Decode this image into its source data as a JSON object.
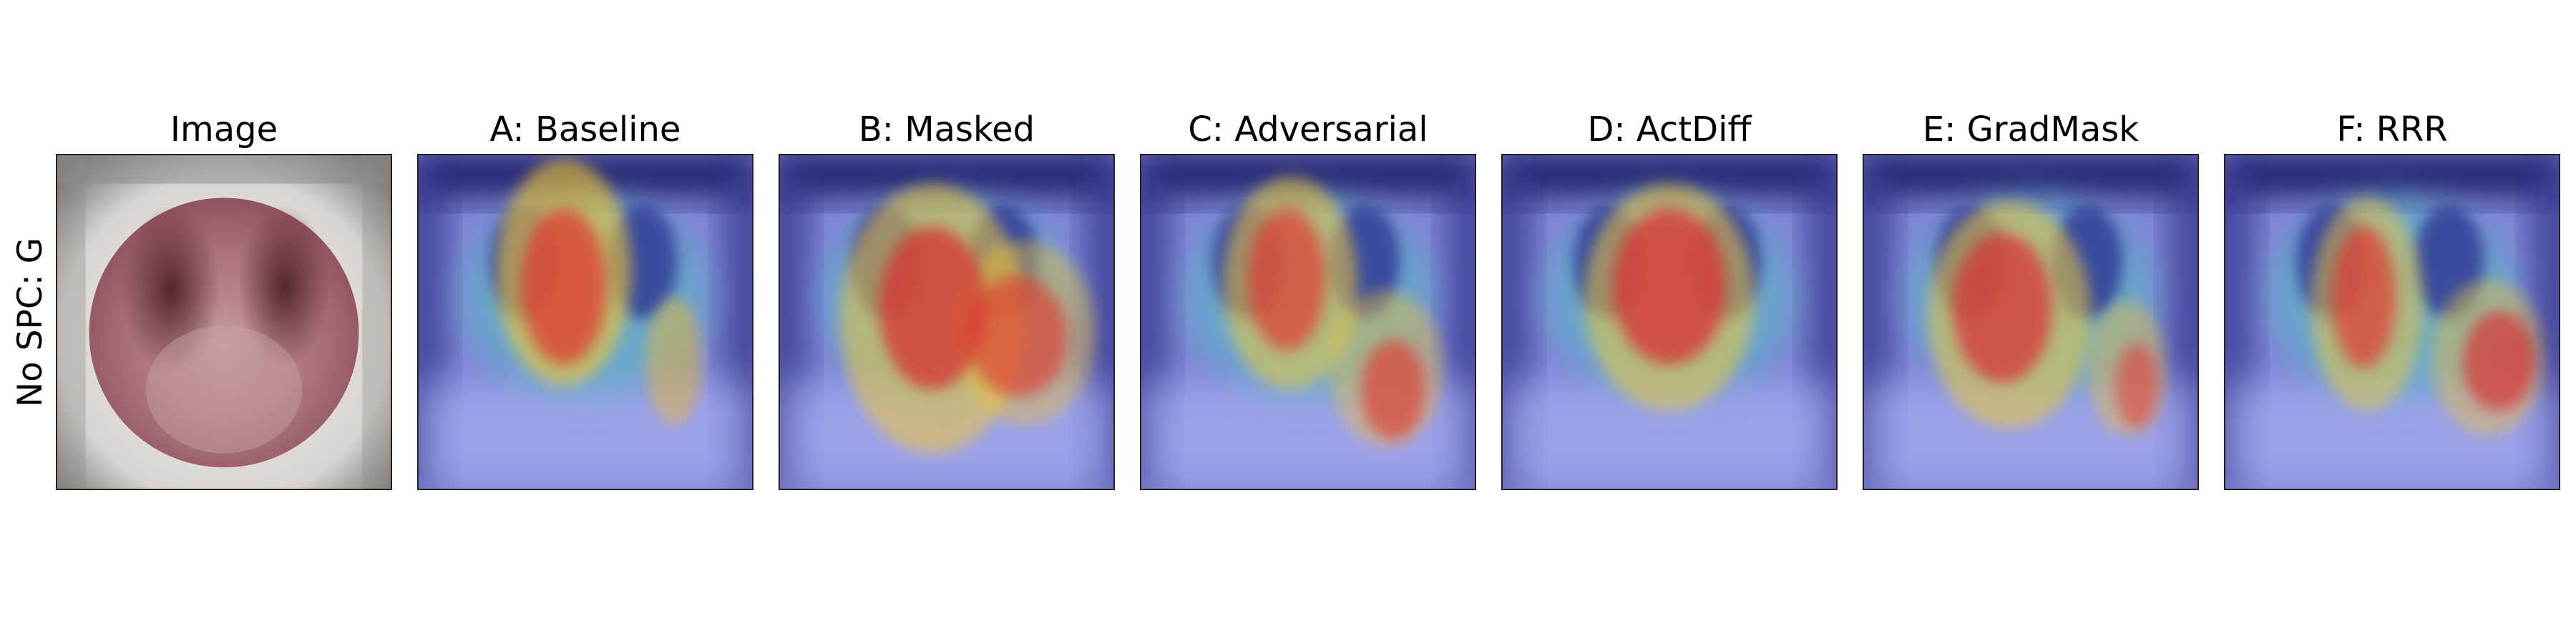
{
  "row_label": "No SPC: G",
  "panels": [
    {
      "title": "Image",
      "kind": "image"
    },
    {
      "title": "A: Baseline",
      "kind": "heatmap",
      "variant": "a"
    },
    {
      "title": "B: Masked",
      "kind": "heatmap",
      "variant": "b"
    },
    {
      "title": "C: Adversarial",
      "kind": "heatmap",
      "variant": "c"
    },
    {
      "title": "D: ActDiff",
      "kind": "heatmap",
      "variant": "d"
    },
    {
      "title": "E: GradMask",
      "kind": "heatmap",
      "variant": "e"
    },
    {
      "title": "F: RRR",
      "kind": "heatmap",
      "variant": "f"
    }
  ],
  "colors": {
    "background": "#ffffff",
    "border": "#222222",
    "mask_circle": "#8a3f47",
    "heat_low": "#1a1a7a",
    "heat_mid": "#5fd0c0",
    "heat_high": "#d0303a"
  }
}
